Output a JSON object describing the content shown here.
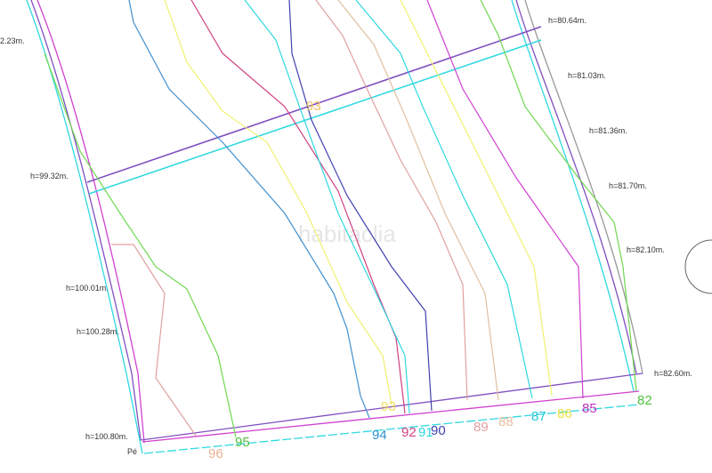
{
  "watermark": "habitaclia",
  "point_label": "Pé",
  "colors": {
    "magenta": "#d040d0",
    "cyan": "#30d8e0",
    "purple": "#8050c0",
    "green": "#70d850",
    "yellow": "#f0f070",
    "pink": "#e0a0a0",
    "blue": "#4090d0",
    "navy": "#4040b0",
    "red": "#d04080"
  },
  "height_labels": {
    "top_left": "2.23m.",
    "left_1": "h=99.32m.",
    "left_2": "h=100.01m.",
    "left_3": "h=100.28m.",
    "left_4": "h=100.80m.",
    "right_1": "h=80.64m.",
    "right_2": "h=81.03m.",
    "right_3": "h=81.36m.",
    "right_4": "h=81.70m.",
    "right_5": "h=82.10m.",
    "right_6": "h=82.60m."
  },
  "contour_labels": {
    "c96": "96",
    "c95": "95",
    "c94": "94",
    "c93a": "93",
    "c93b": "93",
    "c92": "92",
    "c91": "91",
    "c90": "90",
    "c89": "89",
    "c88": "88",
    "c87": "87",
    "c86": "86",
    "c85": "85",
    "c82": "82"
  }
}
